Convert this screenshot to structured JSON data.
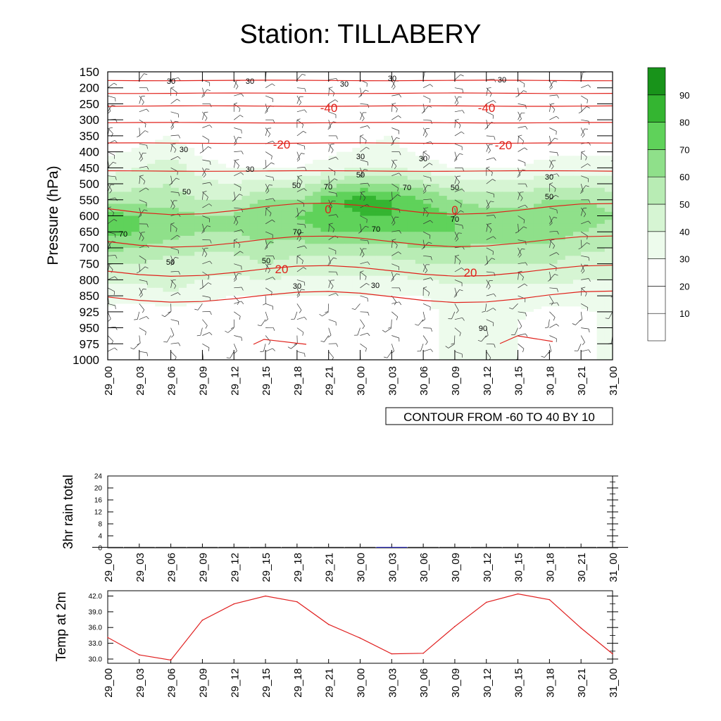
{
  "title": "Station: TILLABERY",
  "colors": {
    "contour_line": "#e0201a",
    "rain_bar": "#1a1aa0",
    "temp_line": "#e02020",
    "green_scale": [
      "#ffffff",
      "#ffffff",
      "#ffffff",
      "#edfbec",
      "#d6f5d3",
      "#b8ecb4",
      "#8fe08a",
      "#5fd25a",
      "#34b531",
      "#18931a"
    ]
  },
  "chart_data": [
    {
      "type": "heatmap",
      "name": "",
      "title": "Station: TILLABERY",
      "ylabel": "Pressure (hPa)",
      "xlabel": "",
      "x_ticks": [
        "29_00",
        "29_03",
        "29_06",
        "29_09",
        "29_12",
        "29_15",
        "29_18",
        "29_21",
        "30_00",
        "30_03",
        "30_06",
        "30_09",
        "30_12",
        "30_15",
        "30_18",
        "30_21",
        "31_00"
      ],
      "y_ticks": [
        "150",
        "200",
        "250",
        "300",
        "350",
        "400",
        "450",
        "500",
        "550",
        "600",
        "650",
        "700",
        "750",
        "800",
        "850",
        "925",
        "950",
        "975",
        "1000"
      ],
      "colorbar_ticks": [
        "10",
        "20",
        "30",
        "40",
        "50",
        "60",
        "70",
        "80",
        "90"
      ],
      "colorbar_levels": [
        0,
        10,
        20,
        30,
        40,
        50,
        60,
        70,
        80,
        90,
        100
      ],
      "contour_info": "CONTOUR FROM -60 TO 40 BY 10",
      "humidity_labels": [
        "30",
        "30",
        "30",
        "30",
        "30",
        "30",
        "30",
        "30",
        "30",
        "30",
        "30",
        "30",
        "50",
        "50",
        "50",
        "50",
        "50",
        "50",
        "50",
        "70",
        "70",
        "70",
        "70",
        "70",
        "70",
        "90"
      ],
      "temperature_labels": [
        "-40",
        "-40",
        "-20",
        "-20",
        "0",
        "0",
        "20",
        "20"
      ],
      "humidity_bands": [
        {
          "level": "150",
          "values": [
            30,
            30,
            30,
            30,
            30,
            30,
            30,
            30,
            30,
            30,
            30,
            30,
            30,
            30,
            30,
            30,
            30
          ]
        },
        {
          "level": "250",
          "values": [
            20,
            20,
            20,
            20,
            20,
            20,
            20,
            20,
            20,
            20,
            20,
            20,
            20,
            20,
            20,
            20,
            20
          ]
        },
        {
          "level": "350",
          "values": [
            20,
            25,
            30,
            20,
            20,
            20,
            20,
            20,
            25,
            30,
            20,
            20,
            20,
            20,
            20,
            20,
            20
          ]
        },
        {
          "level": "450",
          "values": [
            35,
            40,
            45,
            35,
            30,
            30,
            30,
            35,
            40,
            40,
            35,
            30,
            30,
            30,
            35,
            35,
            35
          ]
        },
        {
          "level": "550",
          "values": [
            55,
            55,
            55,
            50,
            50,
            60,
            60,
            75,
            85,
            80,
            70,
            60,
            55,
            55,
            60,
            60,
            55
          ]
        },
        {
          "level": "600",
          "values": [
            75,
            70,
            65,
            60,
            60,
            70,
            70,
            75,
            80,
            80,
            75,
            70,
            65,
            65,
            65,
            65,
            60
          ]
        },
        {
          "level": "650",
          "values": [
            75,
            70,
            65,
            60,
            60,
            65,
            65,
            70,
            70,
            70,
            70,
            70,
            65,
            65,
            65,
            60,
            55
          ]
        },
        {
          "level": "750",
          "values": [
            50,
            50,
            45,
            45,
            45,
            50,
            45,
            45,
            45,
            45,
            50,
            50,
            50,
            50,
            50,
            45,
            45
          ]
        },
        {
          "level": "850",
          "values": [
            35,
            35,
            40,
            35,
            30,
            30,
            30,
            30,
            30,
            30,
            30,
            35,
            35,
            35,
            35,
            35,
            35
          ]
        },
        {
          "level": "950",
          "values": [
            25,
            20,
            20,
            20,
            20,
            20,
            20,
            20,
            20,
            20,
            25,
            35,
            35,
            30,
            25,
            25,
            35
          ]
        }
      ]
    },
    {
      "type": "bar",
      "name": "rain",
      "ylabel": "3hr rain total",
      "xlabel": "",
      "ylim": [
        0,
        24
      ],
      "y_ticks": [
        "0",
        "4",
        "8",
        "12",
        "16",
        "20",
        "24"
      ],
      "categories": [
        "29_00",
        "29_03",
        "29_06",
        "29_09",
        "29_12",
        "29_15",
        "29_18",
        "29_21",
        "30_00",
        "30_03",
        "30_06",
        "30_09",
        "30_12",
        "30_15",
        "30_18",
        "30_21",
        "31_00"
      ],
      "values": [
        0,
        0,
        0,
        0,
        0,
        0,
        0,
        0,
        0,
        0.2,
        0,
        0,
        0,
        0,
        0,
        0,
        0
      ]
    },
    {
      "type": "line",
      "name": "temp",
      "ylabel": "Temp at 2m",
      "xlabel": "",
      "ylim": [
        29.2,
        43.0
      ],
      "y_ticks": [
        "30.0",
        "33.0",
        "36.0",
        "39.0",
        "42.0"
      ],
      "categories": [
        "29_00",
        "29_03",
        "29_06",
        "29_09",
        "29_12",
        "29_15",
        "29_18",
        "29_21",
        "30_00",
        "30_03",
        "30_06",
        "30_09",
        "30_12",
        "30_15",
        "30_18",
        "30_21",
        "31_00"
      ],
      "values": [
        34.1,
        30.8,
        29.8,
        37.4,
        40.5,
        42.0,
        40.9,
        36.6,
        34.0,
        31.0,
        31.1,
        36.2,
        40.8,
        42.4,
        41.3,
        35.9,
        31.0
      ]
    }
  ]
}
